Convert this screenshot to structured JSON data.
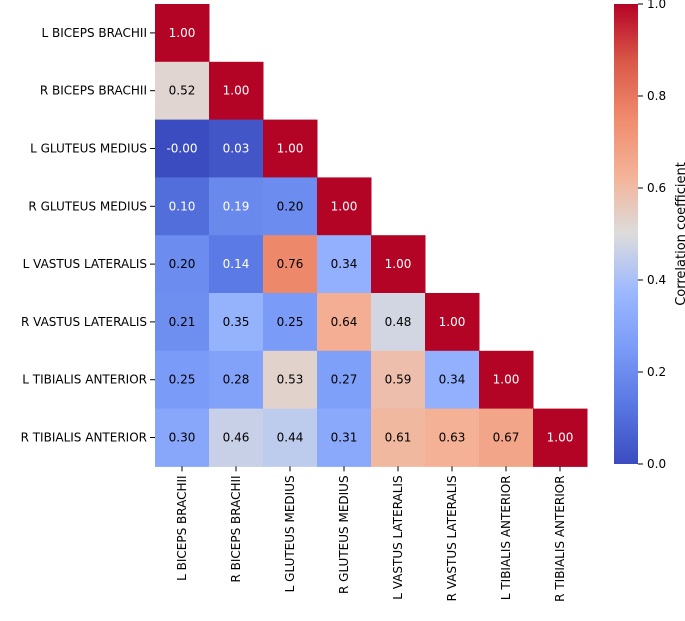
{
  "chart_data": {
    "type": "heatmap",
    "title": "",
    "rows": [
      "L BICEPS BRACHII",
      "R BICEPS BRACHII",
      "L GLUTEUS MEDIUS",
      "R GLUTEUS MEDIUS",
      "L VASTUS LATERALIS",
      "R VASTUS LATERALIS",
      "L TIBIALIS ANTERIOR",
      "R TIBIALIS ANTERIOR"
    ],
    "columns": [
      "L BICEPS BRACHII",
      "R BICEPS BRACHII",
      "L GLUTEUS MEDIUS",
      "R GLUTEUS MEDIUS",
      "L VASTUS LATERALIS",
      "R VASTUS LATERALIS",
      "L TIBIALIS ANTERIOR",
      "R TIBIALIS ANTERIOR"
    ],
    "values": [
      [
        1.0
      ],
      [
        0.52,
        1.0
      ],
      [
        -0.0,
        0.03,
        1.0
      ],
      [
        0.1,
        0.19,
        0.2,
        1.0
      ],
      [
        0.2,
        0.14,
        0.76,
        0.34,
        1.0
      ],
      [
        0.21,
        0.35,
        0.25,
        0.64,
        0.48,
        1.0
      ],
      [
        0.25,
        0.28,
        0.53,
        0.27,
        0.59,
        0.34,
        1.0
      ],
      [
        0.3,
        0.46,
        0.44,
        0.31,
        0.61,
        0.63,
        0.67,
        1.0
      ]
    ],
    "value_labels": [
      [
        "1.00"
      ],
      [
        "0.52",
        "1.00"
      ],
      [
        "-0.00",
        "0.03",
        "1.00"
      ],
      [
        "0.10",
        "0.19",
        "0.20",
        "1.00"
      ],
      [
        "0.20",
        "0.14",
        "0.76",
        "0.34",
        "1.00"
      ],
      [
        "0.21",
        "0.35",
        "0.25",
        "0.64",
        "0.48",
        "1.00"
      ],
      [
        "0.25",
        "0.28",
        "0.53",
        "0.27",
        "0.59",
        "0.34",
        "1.00"
      ],
      [
        "0.30",
        "0.46",
        "0.44",
        "0.31",
        "0.61",
        "0.63",
        "0.67",
        "1.00"
      ]
    ],
    "mask": "upper-triangle",
    "colormap": "coolwarm",
    "vmin": 0.0,
    "vmax": 1.0,
    "colorbar": {
      "label": "Correlation coefficient",
      "ticks": [
        0.0,
        0.2,
        0.4,
        0.6,
        0.8,
        1.0
      ],
      "tick_labels": [
        "0.0",
        "0.2",
        "0.4",
        "0.6",
        "0.8",
        "1.0"
      ],
      "placement": "right"
    },
    "colors": {
      "low": "#3b4cc0",
      "mid": "#dddddd",
      "high": "#b40426"
    }
  }
}
